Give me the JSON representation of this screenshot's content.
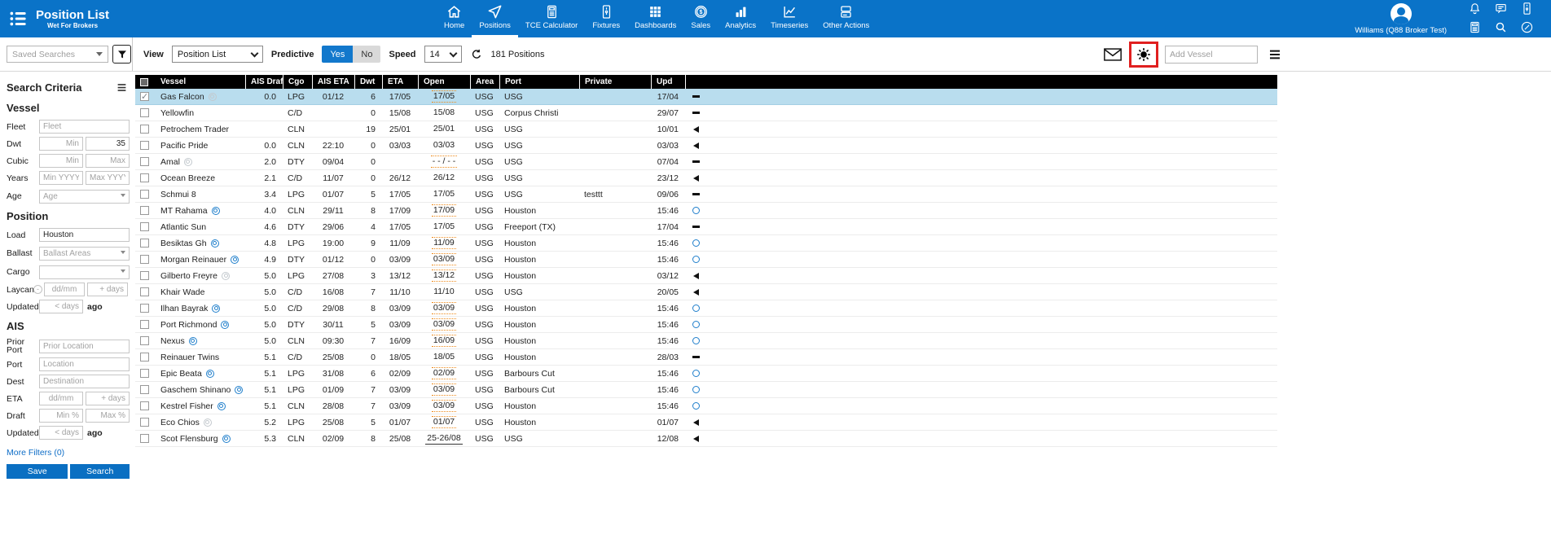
{
  "app": {
    "title": "Position List",
    "subtitle": "Wet For Brokers",
    "user_name": "Williams (Q88 Broker Test)"
  },
  "nav": {
    "items": [
      {
        "label": "Home",
        "icon": "home-icon",
        "active": false
      },
      {
        "label": "Positions",
        "icon": "positions-icon",
        "active": true
      },
      {
        "label": "TCE Calculator",
        "icon": "tce-calculator-icon",
        "active": false
      },
      {
        "label": "Fixtures",
        "icon": "fixtures-icon",
        "active": false
      },
      {
        "label": "Dashboards",
        "icon": "dashboards-icon",
        "active": false
      },
      {
        "label": "Sales",
        "icon": "sales-icon",
        "active": false
      },
      {
        "label": "Analytics",
        "icon": "analytics-icon",
        "active": false
      },
      {
        "label": "Timeseries",
        "icon": "timeseries-icon",
        "active": false
      },
      {
        "label": "Other Actions",
        "icon": "other-actions-icon",
        "active": false
      }
    ]
  },
  "topbar_icons": [
    {
      "name": "bell-icon"
    },
    {
      "name": "chat-icon"
    },
    {
      "name": "contact-card-icon"
    },
    {
      "name": "calculator-icon"
    },
    {
      "name": "magnifier-icon"
    },
    {
      "name": "edit-icon"
    }
  ],
  "toolbar": {
    "saved_searches_placeholder": "Saved Searches",
    "view_label": "View",
    "view_value": "Position List",
    "predictive_label": "Predictive",
    "predictive_yes": "Yes",
    "predictive_no": "No",
    "predictive_selected": "Yes",
    "speed_label": "Speed",
    "speed_value": "14",
    "positions_count": "181 Positions",
    "add_vessel_placeholder": "Add Vessel"
  },
  "sidebar": {
    "heading": "Search Criteria",
    "vessel": {
      "title": "Vessel",
      "fleet_label": "Fleet",
      "fleet_placeholder": "Fleet",
      "dwt_label": "Dwt",
      "dwt_min_placeholder": "Min",
      "dwt_max_value": "35",
      "cubic_label": "Cubic",
      "cubic_min_placeholder": "Min",
      "cubic_max_placeholder": "Max",
      "years_label": "Years",
      "years_min_placeholder": "Min YYYY",
      "years_max_placeholder": "Max YYYY",
      "age_label": "Age",
      "age_placeholder": "Age"
    },
    "position": {
      "title": "Position",
      "load_label": "Load",
      "load_value": "Houston",
      "ballast_label": "Ballast",
      "ballast_placeholder": "Ballast Areas",
      "cargo_label": "Cargo",
      "laycan_label": "Laycan",
      "laycan_date_placeholder": "dd/mm",
      "laycan_days_placeholder": "+ days",
      "updated_label": "Updated",
      "updated_placeholder": "< days",
      "updated_suffix": "ago"
    },
    "ais": {
      "title": "AIS",
      "prior_port_label": "Prior Port",
      "prior_port_placeholder": "Prior Location",
      "port_label": "Port",
      "port_placeholder": "Location",
      "dest_label": "Dest",
      "dest_placeholder": "Destination",
      "eta_label": "ETA",
      "eta_date_placeholder": "dd/mm",
      "eta_days_placeholder": "+ days",
      "draft_label": "Draft",
      "draft_min_placeholder": "Min %",
      "draft_max_placeholder": "Max %",
      "updated_label": "Updated",
      "updated_placeholder": "< days",
      "updated_suffix": "ago"
    },
    "more_filters": "More Filters (0)",
    "save_label": "Save",
    "search_label": "Search"
  },
  "table": {
    "columns": [
      "Vessel",
      "AIS Draft",
      "Cgo",
      "AIS ETA",
      "Dwt",
      "ETA",
      "Open",
      "Area",
      "Port",
      "Private",
      "Upd"
    ],
    "sorted_column": "AIS Draft",
    "sort_direction": "asc",
    "rows": [
      {
        "vessel": "Gas Falcon",
        "vessel_icon": "gray",
        "ais_draft": "0.0",
        "cgo": "LPG",
        "ais_eta": "01/12",
        "dwt": "6",
        "eta": "17/05",
        "open": "17/05",
        "open_style": "dotted",
        "area": "USG",
        "port": "USG",
        "private": "",
        "upd": "17/04",
        "upd_icon": "dash",
        "selected": true
      },
      {
        "vessel": "Yellowfin",
        "vessel_icon": "",
        "ais_draft": "",
        "cgo": "C/D",
        "ais_eta": "",
        "dwt": "0",
        "eta": "15/08",
        "open": "15/08",
        "open_style": "plain",
        "area": "USG",
        "port": "Corpus Christi",
        "private": "",
        "upd": "29/07",
        "upd_icon": "dash",
        "selected": false
      },
      {
        "vessel": "Petrochem Trader",
        "vessel_icon": "",
        "ais_draft": "",
        "cgo": "CLN",
        "ais_eta": "",
        "dwt": "19",
        "eta": "25/01",
        "open": "25/01",
        "open_style": "plain",
        "area": "USG",
        "port": "USG",
        "private": "",
        "upd": "10/01",
        "upd_icon": "triangle",
        "selected": false
      },
      {
        "vessel": "Pacific Pride",
        "vessel_icon": "",
        "ais_draft": "0.0",
        "cgo": "CLN",
        "ais_eta": "22:10",
        "dwt": "0",
        "eta": "03/03",
        "open": "03/03",
        "open_style": "plain",
        "area": "USG",
        "port": "USG",
        "private": "",
        "upd": "03/03",
        "upd_icon": "triangle",
        "selected": false
      },
      {
        "vessel": "Amal",
        "vessel_icon": "gray",
        "ais_draft": "2.0",
        "cgo": "DTY",
        "ais_eta": "09/04",
        "dwt": "0",
        "eta": "",
        "open": "- - / - -",
        "open_style": "dotted",
        "area": "USG",
        "port": "USG",
        "private": "",
        "upd": "07/04",
        "upd_icon": "dash",
        "selected": false
      },
      {
        "vessel": "Ocean Breeze",
        "vessel_icon": "",
        "ais_draft": "2.1",
        "cgo": "C/D",
        "ais_eta": "11/07",
        "dwt": "0",
        "eta": "26/12",
        "open": "26/12",
        "open_style": "plain",
        "area": "USG",
        "port": "USG",
        "private": "",
        "upd": "23/12",
        "upd_icon": "triangle",
        "selected": false
      },
      {
        "vessel": "Schmui 8",
        "vessel_icon": "",
        "ais_draft": "3.4",
        "cgo": "LPG",
        "ais_eta": "01/07",
        "dwt": "5",
        "eta": "17/05",
        "open": "17/05",
        "open_style": "plain",
        "area": "USG",
        "port": "USG",
        "private": "testtt",
        "upd": "09/06",
        "upd_icon": "dash",
        "selected": false
      },
      {
        "vessel": "MT Rahama",
        "vessel_icon": "blue",
        "ais_draft": "4.0",
        "cgo": "CLN",
        "ais_eta": "29/11",
        "dwt": "8",
        "eta": "17/09",
        "open": "17/09",
        "open_style": "dotted",
        "area": "USG",
        "port": "Houston",
        "private": "",
        "upd": "15:46",
        "upd_icon": "circle",
        "selected": false
      },
      {
        "vessel": "Atlantic Sun",
        "vessel_icon": "",
        "ais_draft": "4.6",
        "cgo": "DTY",
        "ais_eta": "29/06",
        "dwt": "4",
        "eta": "17/05",
        "open": "17/05",
        "open_style": "plain",
        "area": "USG",
        "port": "Freeport (TX)",
        "private": "",
        "upd": "17/04",
        "upd_icon": "dash",
        "selected": false
      },
      {
        "vessel": "Besiktas Gh",
        "vessel_icon": "blue",
        "ais_draft": "4.8",
        "cgo": "LPG",
        "ais_eta": "19:00",
        "dwt": "9",
        "eta": "11/09",
        "open": "11/09",
        "open_style": "dotted",
        "area": "USG",
        "port": "Houston",
        "private": "",
        "upd": "15:46",
        "upd_icon": "circle",
        "selected": false
      },
      {
        "vessel": "Morgan Reinauer",
        "vessel_icon": "blue",
        "ais_draft": "4.9",
        "cgo": "DTY",
        "ais_eta": "01/12",
        "dwt": "0",
        "eta": "03/09",
        "open": "03/09",
        "open_style": "dotted",
        "area": "USG",
        "port": "Houston",
        "private": "",
        "upd": "15:46",
        "upd_icon": "circle",
        "selected": false
      },
      {
        "vessel": "Gilberto Freyre",
        "vessel_icon": "gray",
        "ais_draft": "5.0",
        "cgo": "LPG",
        "ais_eta": "27/08",
        "dwt": "3",
        "eta": "13/12",
        "open": "13/12",
        "open_style": "dotted",
        "area": "USG",
        "port": "Houston",
        "private": "",
        "upd": "03/12",
        "upd_icon": "triangle",
        "selected": false
      },
      {
        "vessel": "Khair Wade",
        "vessel_icon": "",
        "ais_draft": "5.0",
        "cgo": "C/D",
        "ais_eta": "16/08",
        "dwt": "7",
        "eta": "11/10",
        "open": "11/10",
        "open_style": "plain",
        "area": "USG",
        "port": "USG",
        "private": "",
        "upd": "20/05",
        "upd_icon": "triangle",
        "selected": false
      },
      {
        "vessel": "Ilhan Bayrak",
        "vessel_icon": "blue",
        "ais_draft": "5.0",
        "cgo": "C/D",
        "ais_eta": "29/08",
        "dwt": "8",
        "eta": "03/09",
        "open": "03/09",
        "open_style": "dotted",
        "area": "USG",
        "port": "Houston",
        "private": "",
        "upd": "15:46",
        "upd_icon": "circle",
        "selected": false
      },
      {
        "vessel": "Port Richmond",
        "vessel_icon": "blue",
        "ais_draft": "5.0",
        "cgo": "DTY",
        "ais_eta": "30/11",
        "dwt": "5",
        "eta": "03/09",
        "open": "03/09",
        "open_style": "dotted",
        "area": "USG",
        "port": "Houston",
        "private": "",
        "upd": "15:46",
        "upd_icon": "circle",
        "selected": false
      },
      {
        "vessel": "Nexus",
        "vessel_icon": "blue",
        "ais_draft": "5.0",
        "cgo": "CLN",
        "ais_eta": "09:30",
        "dwt": "7",
        "eta": "16/09",
        "open": "16/09",
        "open_style": "dotted",
        "area": "USG",
        "port": "Houston",
        "private": "",
        "upd": "15:46",
        "upd_icon": "circle",
        "selected": false
      },
      {
        "vessel": "Reinauer Twins",
        "vessel_icon": "",
        "ais_draft": "5.1",
        "cgo": "C/D",
        "ais_eta": "25/08",
        "dwt": "0",
        "eta": "18/05",
        "open": "18/05",
        "open_style": "plain",
        "area": "USG",
        "port": "Houston",
        "private": "",
        "upd": "28/03",
        "upd_icon": "dash",
        "selected": false
      },
      {
        "vessel": "Epic Beata",
        "vessel_icon": "blue",
        "ais_draft": "5.1",
        "cgo": "LPG",
        "ais_eta": "31/08",
        "dwt": "6",
        "eta": "02/09",
        "open": "02/09",
        "open_style": "dotted",
        "area": "USG",
        "port": "Barbours Cut",
        "private": "",
        "upd": "15:46",
        "upd_icon": "circle",
        "selected": false
      },
      {
        "vessel": "Gaschem Shinano",
        "vessel_icon": "blue",
        "ais_draft": "5.1",
        "cgo": "LPG",
        "ais_eta": "01/09",
        "dwt": "7",
        "eta": "03/09",
        "open": "03/09",
        "open_style": "dotted",
        "area": "USG",
        "port": "Barbours Cut",
        "private": "",
        "upd": "15:46",
        "upd_icon": "circle",
        "selected": false
      },
      {
        "vessel": "Kestrel Fisher",
        "vessel_icon": "blue",
        "ais_draft": "5.1",
        "cgo": "CLN",
        "ais_eta": "28/08",
        "dwt": "7",
        "eta": "03/09",
        "open": "03/09",
        "open_style": "dotted",
        "area": "USG",
        "port": "Houston",
        "private": "",
        "upd": "15:46",
        "upd_icon": "circle",
        "selected": false
      },
      {
        "vessel": "Eco Chios",
        "vessel_icon": "gray",
        "ais_draft": "5.2",
        "cgo": "LPG",
        "ais_eta": "25/08",
        "dwt": "5",
        "eta": "01/07",
        "open": "01/07",
        "open_style": "dotted",
        "area": "USG",
        "port": "Houston",
        "private": "",
        "upd": "01/07",
        "upd_icon": "triangle",
        "selected": false
      },
      {
        "vessel": "Scot Flensburg",
        "vessel_icon": "blue",
        "ais_draft": "5.3",
        "cgo": "CLN",
        "ais_eta": "02/09",
        "dwt": "8",
        "eta": "25/08",
        "open": "25-26/08",
        "open_style": "underline",
        "area": "USG",
        "port": "USG",
        "private": "",
        "upd": "12/08",
        "upd_icon": "triangle",
        "selected": false
      }
    ]
  },
  "colors": {
    "header_blue": "#0a73c8",
    "selected_row": "#b9ddee",
    "open_dotted_orange": "#ee8a1a",
    "link_blue": "#0e6dc7",
    "annotation_red": "#e01f1f",
    "upd_circle_blue": "#1e7ecb",
    "table_header_bg": "#000000"
  }
}
